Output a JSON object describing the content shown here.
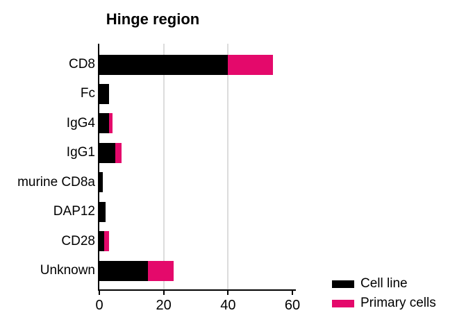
{
  "page": {
    "background": "#ffffff"
  },
  "chart_data": {
    "type": "bar",
    "orientation": "horizontal",
    "stacked": true,
    "title": "Hinge region",
    "categories": [
      "CD8",
      "Fc",
      "IgG4",
      "IgG1",
      "murine CD8a",
      "DAP12",
      "CD28",
      "Unknown"
    ],
    "series": [
      {
        "name": "Cell line",
        "color": "#000000",
        "values": [
          40,
          3,
          3,
          5,
          1,
          2,
          1.5,
          15
        ]
      },
      {
        "name": "Primary cells",
        "color": "#e4096b",
        "values": [
          14,
          0,
          1,
          2,
          0,
          0,
          1.5,
          8
        ]
      }
    ],
    "totals": [
      54,
      3,
      4,
      7,
      1,
      2,
      3,
      23
    ],
    "xlabel": "",
    "ylabel": "",
    "xlim": [
      0,
      60
    ],
    "xticks": [
      0,
      20,
      40,
      60
    ],
    "gridlines_x": [
      20,
      40
    ],
    "grid": true,
    "legend_position": "bottom-right",
    "legend": {
      "entries": [
        {
          "label": "Cell line",
          "color": "#000000"
        },
        {
          "label": "Primary cells",
          "color": "#e4096b"
        }
      ]
    },
    "colors": {
      "axis": "#000000",
      "gridline": "#dcdcdc",
      "background": "#ffffff",
      "text": "#000000"
    }
  }
}
